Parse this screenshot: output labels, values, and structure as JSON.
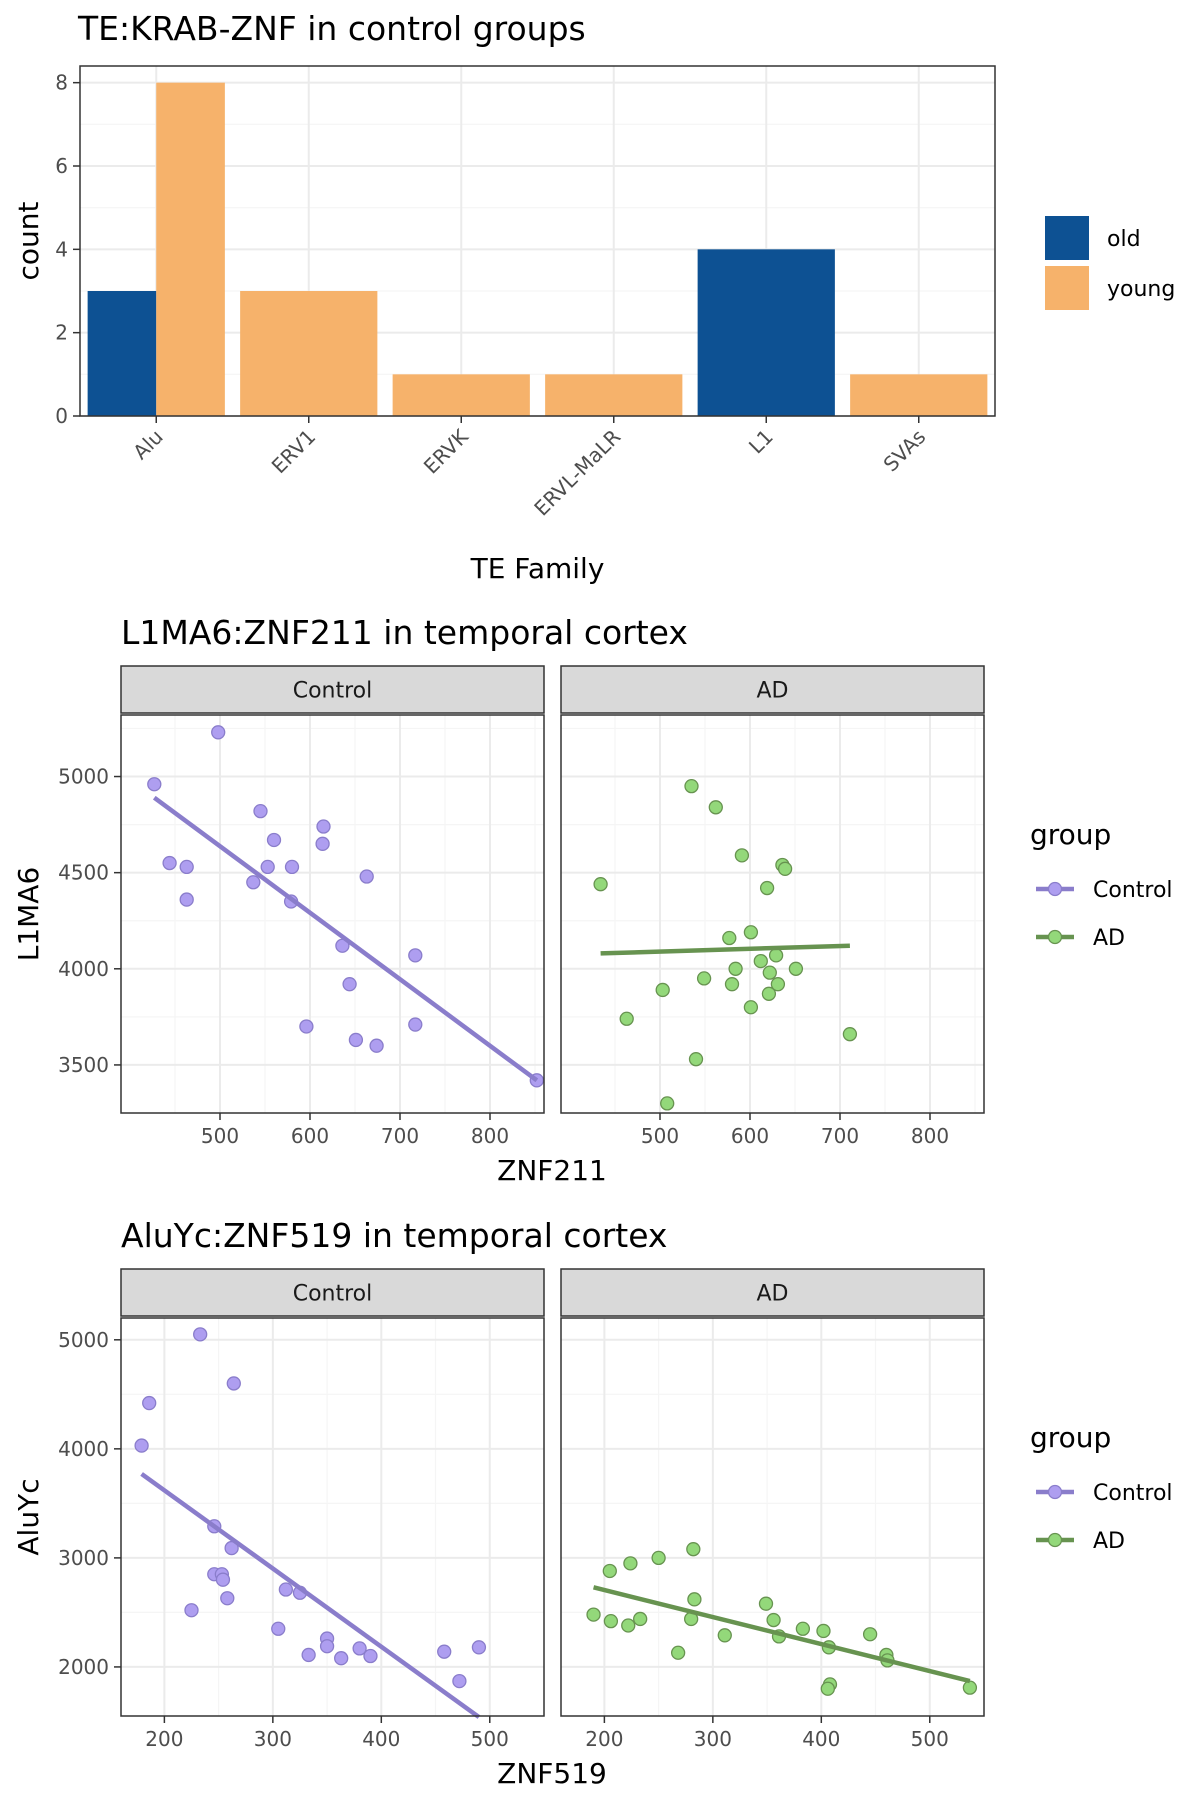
{
  "chart_data": [
    {
      "type": "bar",
      "title": "TE:KRAB-ZNF in control groups",
      "xlabel": "TE Family",
      "ylabel": "count",
      "categories": [
        "Alu",
        "ERV1",
        "ERVK",
        "ERVL-MaLR",
        "L1",
        "SVAs"
      ],
      "series": [
        {
          "name": "old",
          "values": [
            3,
            0,
            0,
            0,
            4,
            0
          ],
          "color": "#0d5193"
        },
        {
          "name": "young",
          "values": [
            8,
            3,
            1,
            1,
            0,
            1
          ],
          "color": "#f6b26b"
        }
      ],
      "ylim": [
        0,
        8.4
      ],
      "yticks": [
        "0",
        "2",
        "4",
        "6",
        "8"
      ],
      "grid": true,
      "legend": "right"
    },
    {
      "type": "scatter",
      "title": "L1MA6:ZNF211 in temporal cortex",
      "xlabel": "ZNF211",
      "ylabel": "L1MA6",
      "xlim": [
        390,
        860
      ],
      "ylim": [
        3250,
        5320
      ],
      "xticks": [
        "500",
        "600",
        "700",
        "800"
      ],
      "yticks": [
        "3500",
        "4000",
        "4500",
        "5000"
      ],
      "legend_title": "group",
      "legend": "right",
      "panels": [
        {
          "name": "Control",
          "color": "#8a7dcb",
          "fill": "#ae9ef0",
          "points": [
            [
              427,
              4960
            ],
            [
              498,
              5230
            ],
            [
              444,
              4550
            ],
            [
              463,
              4530
            ],
            [
              463,
              4360
            ],
            [
              545,
              4820
            ],
            [
              560,
              4670
            ],
            [
              537,
              4450
            ],
            [
              553,
              4530
            ],
            [
              580,
              4530
            ],
            [
              579,
              4350
            ],
            [
              615,
              4740
            ],
            [
              614,
              4650
            ],
            [
              663,
              4480
            ],
            [
              636,
              4120
            ],
            [
              644,
              3920
            ],
            [
              717,
              4070
            ],
            [
              596,
              3700
            ],
            [
              651,
              3630
            ],
            [
              674,
              3600
            ],
            [
              717,
              3710
            ],
            [
              852,
              3420
            ]
          ],
          "fit": [
            [
              427,
              4890
            ],
            [
              852,
              3420
            ]
          ]
        },
        {
          "name": "AD",
          "color": "#679350",
          "fill": "#93d87a",
          "points": [
            [
              434,
              4440
            ],
            [
              535,
              4950
            ],
            [
              562,
              4840
            ],
            [
              591,
              4590
            ],
            [
              636,
              4540
            ],
            [
              639,
              4520
            ],
            [
              619,
              4420
            ],
            [
              601,
              4190
            ],
            [
              577,
              4160
            ],
            [
              629,
              4070
            ],
            [
              612,
              4040
            ],
            [
              584,
              4000
            ],
            [
              622,
              3980
            ],
            [
              651,
              4000
            ],
            [
              580,
              3920
            ],
            [
              631,
              3920
            ],
            [
              549,
              3950
            ],
            [
              503,
              3890
            ],
            [
              621,
              3870
            ],
            [
              601,
              3800
            ],
            [
              463,
              3740
            ],
            [
              711,
              3660
            ],
            [
              540,
              3530
            ],
            [
              508,
              3300
            ]
          ],
          "fit": [
            [
              434,
              4080
            ],
            [
              711,
              4120
            ]
          ]
        }
      ]
    },
    {
      "type": "scatter",
      "title": "AluYc:ZNF519 in temporal cortex",
      "xlabel": "ZNF519",
      "ylabel": "AluYc",
      "xlim": [
        160,
        550
      ],
      "ylim": [
        1550,
        5200
      ],
      "xticks": [
        "200",
        "300",
        "400",
        "500"
      ],
      "yticks": [
        "2000",
        "3000",
        "4000",
        "5000"
      ],
      "legend_title": "group",
      "legend": "right",
      "panels": [
        {
          "name": "Control",
          "color": "#8a7dcb",
          "fill": "#ae9ef0",
          "points": [
            [
              233,
              5050
            ],
            [
              264,
              4600
            ],
            [
              186,
              4420
            ],
            [
              179,
              4030
            ],
            [
              246,
              3290
            ],
            [
              262,
              3090
            ],
            [
              246,
              2850
            ],
            [
              253,
              2850
            ],
            [
              254,
              2800
            ],
            [
              258,
              2630
            ],
            [
              225,
              2520
            ],
            [
              312,
              2710
            ],
            [
              325,
              2680
            ],
            [
              305,
              2350
            ],
            [
              350,
              2260
            ],
            [
              350,
              2190
            ],
            [
              333,
              2110
            ],
            [
              363,
              2080
            ],
            [
              380,
              2170
            ],
            [
              390,
              2100
            ],
            [
              458,
              2140
            ],
            [
              490,
              2180
            ],
            [
              472,
              1870
            ]
          ],
          "fit": [
            [
              179,
              3770
            ],
            [
              490,
              1540
            ]
          ]
        },
        {
          "name": "AD",
          "color": "#679350",
          "fill": "#93d87a",
          "points": [
            [
              282,
              3080
            ],
            [
              250,
              3000
            ],
            [
              224,
              2950
            ],
            [
              205,
              2880
            ],
            [
              190,
              2480
            ],
            [
              206,
              2420
            ],
            [
              222,
              2380
            ],
            [
              233,
              2440
            ],
            [
              280,
              2440
            ],
            [
              283,
              2620
            ],
            [
              268,
              2130
            ],
            [
              311,
              2290
            ],
            [
              349,
              2580
            ],
            [
              356,
              2430
            ],
            [
              361,
              2280
            ],
            [
              383,
              2350
            ],
            [
              402,
              2330
            ],
            [
              407,
              2180
            ],
            [
              445,
              2300
            ],
            [
              460,
              2110
            ],
            [
              461,
              2060
            ],
            [
              408,
              1840
            ],
            [
              406,
              1800
            ],
            [
              537,
              1810
            ]
          ],
          "fit": [
            [
              190,
              2730
            ],
            [
              537,
              1870
            ]
          ]
        }
      ]
    }
  ]
}
